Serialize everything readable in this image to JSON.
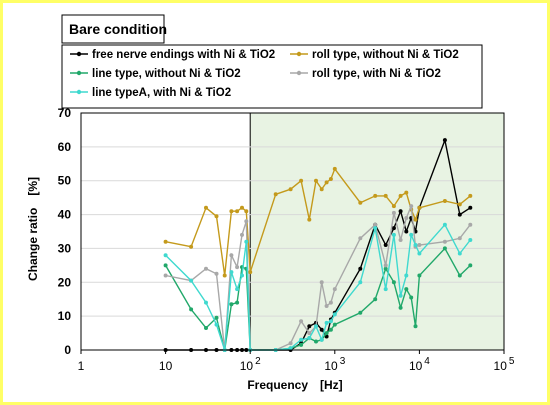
{
  "chart_data": {
    "type": "line",
    "title": "Bare condition",
    "xlabel": "Frequency　[Hz]",
    "ylabel": "Change ratio　[%]",
    "x_scale": "log",
    "xlim": [
      1,
      100000
    ],
    "ylim": [
      0,
      70
    ],
    "y_ticks": [
      "0",
      "10",
      "20",
      "30",
      "40",
      "50",
      "60",
      "70"
    ],
    "x_ticks": [
      {
        "base": "1",
        "exp": ""
      },
      {
        "base": "10",
        "exp": ""
      },
      {
        "base": "10",
        "exp": "2"
      },
      {
        "base": "10",
        "exp": "3"
      },
      {
        "base": "10",
        "exp": "4"
      },
      {
        "base": "10",
        "exp": "5"
      }
    ],
    "grid": "horizontal",
    "legend_position": "top",
    "highlight_region": {
      "x_from": 100,
      "x_to": 100000,
      "color": "#e8f3e3"
    },
    "series": [
      {
        "name": "free nerve endings with Ni & TiO2",
        "color": "#000000",
        "x": [
          10,
          20,
          30,
          40,
          50,
          60,
          70,
          80,
          90,
          100,
          200,
          300,
          400,
          500,
          600,
          700,
          800,
          900,
          1000,
          2000,
          3000,
          4000,
          5000,
          6000,
          7000,
          8000,
          9000,
          10000,
          20000,
          30000,
          40000
        ],
        "y": [
          0,
          0,
          0,
          0,
          0,
          0,
          0,
          0,
          0,
          0,
          0,
          0,
          2,
          7,
          8,
          6,
          4,
          9,
          11,
          24,
          37,
          31,
          36,
          41,
          35,
          39,
          35,
          42,
          62,
          40,
          42
        ]
      },
      {
        "name": "roll type, without Ni & TiO2",
        "color": "#c49a1c",
        "x": [
          10,
          20,
          30,
          40,
          50,
          60,
          70,
          80,
          90,
          100,
          200,
          300,
          400,
          500,
          600,
          700,
          800,
          900,
          1000,
          2000,
          3000,
          4000,
          5000,
          6000,
          7000,
          8000,
          9000,
          10000,
          20000,
          30000,
          40000
        ],
        "y": [
          32,
          30.5,
          42,
          39.5,
          22,
          41,
          41,
          42,
          41,
          23,
          46,
          47.5,
          50,
          38.5,
          50,
          47.5,
          49.5,
          50.5,
          53.5,
          43.5,
          45.5,
          45.5,
          42.5,
          45.5,
          46.5,
          41.5,
          38.5,
          42,
          44,
          43,
          45.5
        ]
      },
      {
        "name": "line type, without Ni & TiO2",
        "color": "#21a86a",
        "x": [
          10,
          20,
          30,
          40,
          50,
          60,
          70,
          80,
          90,
          100,
          200,
          300,
          400,
          500,
          600,
          700,
          800,
          900,
          1000,
          2000,
          3000,
          4000,
          5000,
          6000,
          7000,
          8000,
          9000,
          10000,
          20000,
          30000,
          40000
        ],
        "y": [
          25,
          12,
          6.5,
          9.5,
          0,
          13.5,
          14,
          24.5,
          24,
          0,
          0,
          0.5,
          1.5,
          3.5,
          2.5,
          3,
          5,
          6,
          7.5,
          11,
          15,
          24,
          20,
          12.5,
          18,
          15.5,
          7,
          22,
          30,
          22,
          25
        ]
      },
      {
        "name": "roll type, with Ni & TiO2",
        "color": "#a8a8a8",
        "x": [
          10,
          20,
          30,
          40,
          50,
          60,
          70,
          80,
          90,
          100,
          200,
          300,
          400,
          500,
          600,
          700,
          800,
          900,
          1000,
          2000,
          3000,
          4000,
          5000,
          6000,
          7000,
          8000,
          9000,
          10000,
          20000,
          30000,
          40000
        ],
        "y": [
          22,
          20.5,
          24,
          22.5,
          0,
          28,
          24.5,
          34,
          38,
          0,
          0,
          2,
          8.5,
          5,
          7,
          20,
          13,
          14,
          18,
          33,
          37,
          25,
          40.5,
          32.5,
          39,
          42.5,
          30.5,
          31,
          32,
          33,
          37
        ]
      },
      {
        "name": "line typeA, with Ni & TiO2",
        "color": "#3fd9cf",
        "x": [
          10,
          20,
          30,
          40,
          50,
          60,
          70,
          80,
          90,
          100,
          200,
          300,
          400,
          500,
          600,
          700,
          800,
          900,
          1000,
          2000,
          3000,
          4000,
          5000,
          6000,
          7000,
          8000,
          9000,
          10000,
          20000,
          30000,
          40000
        ],
        "y": [
          28,
          20.5,
          14,
          7.5,
          0,
          23,
          18,
          22,
          32,
          0,
          0,
          0.5,
          3,
          3.5,
          7,
          3,
          8,
          8.5,
          10.5,
          20,
          36,
          18,
          34,
          16,
          22,
          34,
          31,
          28.5,
          37,
          28.5,
          32.5
        ]
      }
    ]
  },
  "colors": {
    "frame_border": "#ffff66",
    "grid": "#d9d9d9",
    "axis": "#000000"
  }
}
